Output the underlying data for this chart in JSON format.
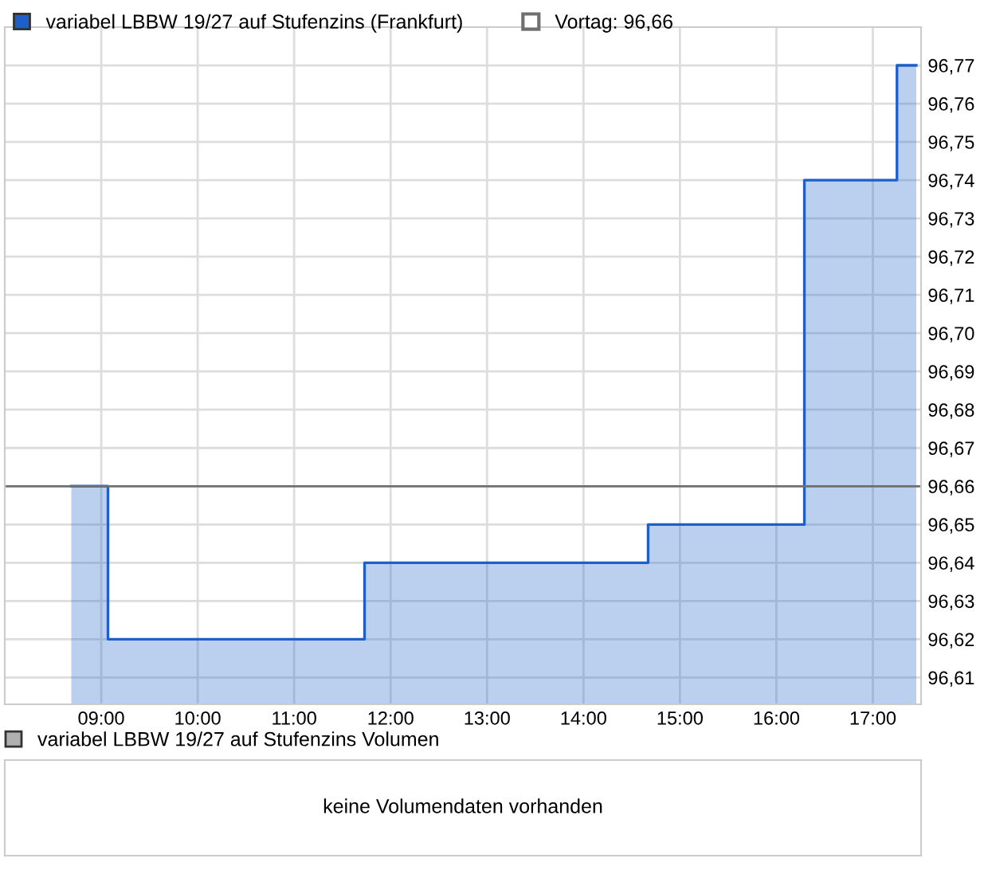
{
  "chart_data": [
    {
      "type": "area",
      "x": [
        8.69,
        9.07,
        9.07,
        11.73,
        11.73,
        14.67,
        14.67,
        16.29,
        16.29,
        17.25,
        17.25,
        17.45
      ],
      "series": [
        {
          "name": "variabel LBBW 19/27 auf Stufenzins (Frankfurt)",
          "color": "#1f5fc8",
          "values": [
            96.66,
            96.66,
            96.62,
            96.62,
            96.64,
            96.64,
            96.65,
            96.65,
            96.74,
            96.74,
            96.77,
            96.77
          ]
        }
      ],
      "xlim": [
        8.0,
        17.5
      ],
      "xticks": [
        {
          "value": 9,
          "label": "09:00"
        },
        {
          "value": 10,
          "label": "10:00"
        },
        {
          "value": 11,
          "label": "11:00"
        },
        {
          "value": 12,
          "label": "12:00"
        },
        {
          "value": 13,
          "label": "13:00"
        },
        {
          "value": 14,
          "label": "14:00"
        },
        {
          "value": 15,
          "label": "15:00"
        },
        {
          "value": 16,
          "label": "16:00"
        },
        {
          "value": 17,
          "label": "17:00"
        }
      ],
      "ylim": [
        96.603,
        96.78
      ],
      "yticks": [
        {
          "value": 96.61,
          "label": "96,61"
        },
        {
          "value": 96.62,
          "label": "96,62"
        },
        {
          "value": 96.63,
          "label": "96,63"
        },
        {
          "value": 96.64,
          "label": "96,64"
        },
        {
          "value": 96.65,
          "label": "96,65"
        },
        {
          "value": 96.66,
          "label": "96,66"
        },
        {
          "value": 96.67,
          "label": "96,67"
        },
        {
          "value": 96.68,
          "label": "96,68"
        },
        {
          "value": 96.69,
          "label": "96,69"
        },
        {
          "value": 96.7,
          "label": "96,70"
        },
        {
          "value": 96.71,
          "label": "96,71"
        },
        {
          "value": 96.72,
          "label": "96,72"
        },
        {
          "value": 96.73,
          "label": "96,73"
        },
        {
          "value": 96.74,
          "label": "96,74"
        },
        {
          "value": 96.75,
          "label": "96,75"
        },
        {
          "value": 96.76,
          "label": "96,76"
        },
        {
          "value": 96.77,
          "label": "96,77"
        }
      ],
      "ref_lines": [
        {
          "axis": "y",
          "value": 96.66,
          "label": "Vortag: 96,66",
          "color": "#707070"
        }
      ],
      "grid": true,
      "legend": "top left"
    },
    {
      "type": "other",
      "title": "variabel LBBW 19/27 auf Stufenzins Volumen",
      "annotations": [
        "keine Volumendaten vorhanden"
      ]
    }
  ]
}
